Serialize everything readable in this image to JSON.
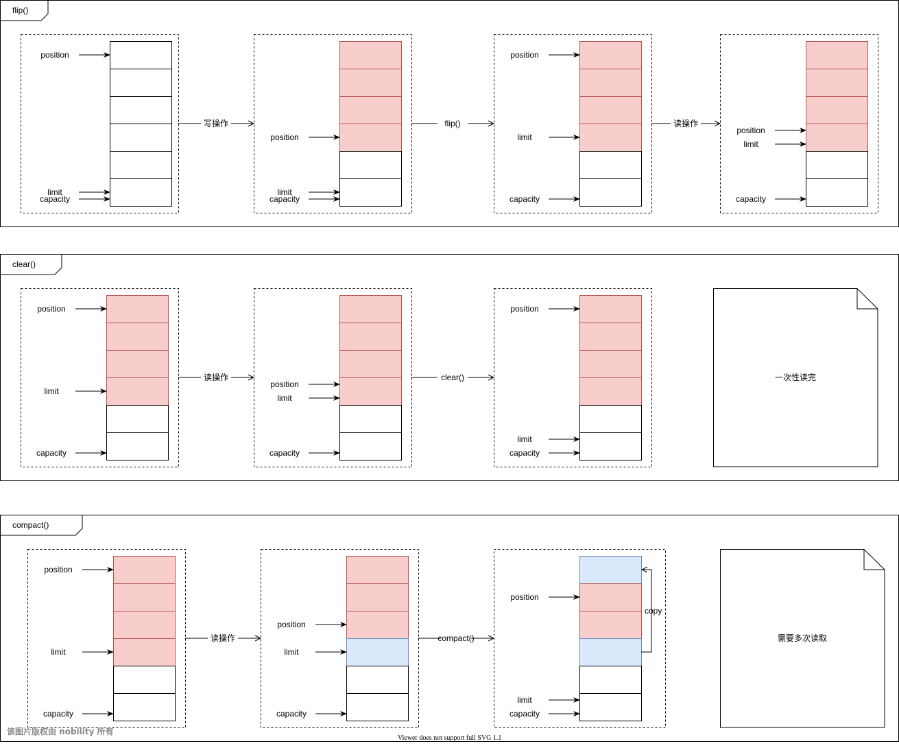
{
  "colors": {
    "filled": "#f8cecc",
    "filled_stroke": "#b85450",
    "copied": "#dae8fc",
    "copied_stroke": "#6c8ebf",
    "empty": "#ffffff"
  },
  "panels": [
    {
      "title": "flip()",
      "frames": [
        {
          "cells": [
            "empty",
            "empty",
            "empty",
            "empty",
            "empty",
            "empty"
          ],
          "pointers": [
            {
              "label": "position",
              "at": 0.5
            },
            {
              "label": "limit",
              "at": 5.5
            },
            {
              "label": "capacity",
              "at": 6
            }
          ]
        },
        {
          "cells": [
            "filled",
            "filled",
            "filled",
            "filled",
            "empty",
            "empty"
          ],
          "pointers": [
            {
              "label": "position",
              "at": 3.5
            },
            {
              "label": "limit",
              "at": 5.5
            },
            {
              "label": "capacity",
              "at": 6
            }
          ]
        },
        {
          "cells": [
            "filled",
            "filled",
            "filled",
            "filled",
            "empty",
            "empty"
          ],
          "pointers": [
            {
              "label": "position",
              "at": 0.5
            },
            {
              "label": "limit",
              "at": 3.5
            },
            {
              "label": "capacity",
              "at": 6
            }
          ]
        },
        {
          "cells": [
            "filled",
            "filled",
            "filled",
            "filled",
            "empty",
            "empty"
          ],
          "pointers": [
            {
              "label": "position",
              "at": 3.25
            },
            {
              "label": "limit",
              "at": 3.75
            },
            {
              "label": "capacity",
              "at": 6
            }
          ]
        }
      ],
      "transitions": [
        "写操作",
        "flip()",
        "读操作"
      ],
      "note": null
    },
    {
      "title": "clear()",
      "frames": [
        {
          "cells": [
            "filled",
            "filled",
            "filled",
            "filled",
            "empty",
            "empty"
          ],
          "pointers": [
            {
              "label": "position",
              "at": 0.5
            },
            {
              "label": "limit",
              "at": 3.5
            },
            {
              "label": "capacity",
              "at": 6
            }
          ]
        },
        {
          "cells": [
            "filled",
            "filled",
            "filled",
            "filled",
            "empty",
            "empty"
          ],
          "pointers": [
            {
              "label": "position",
              "at": 3.25
            },
            {
              "label": "limit",
              "at": 3.75
            },
            {
              "label": "capacity",
              "at": 6
            }
          ]
        },
        {
          "cells": [
            "filled",
            "filled",
            "filled",
            "filled",
            "empty",
            "empty"
          ],
          "pointers": [
            {
              "label": "position",
              "at": 0.5
            },
            {
              "label": "limit",
              "at": 5.25
            },
            {
              "label": "capacity",
              "at": 6
            }
          ]
        }
      ],
      "transitions": [
        "读操作",
        "clear()"
      ],
      "note": "一次性读完"
    },
    {
      "title": "compact()",
      "frames": [
        {
          "cells": [
            "filled",
            "filled",
            "filled",
            "filled",
            "empty",
            "empty"
          ],
          "pointers": [
            {
              "label": "position",
              "at": 0.5
            },
            {
              "label": "limit",
              "at": 3.5
            },
            {
              "label": "capacity",
              "at": 6
            }
          ]
        },
        {
          "cells": [
            "filled",
            "filled",
            "filled",
            "copied",
            "empty",
            "empty"
          ],
          "pointers": [
            {
              "label": "position",
              "at": 2.5
            },
            {
              "label": "limit",
              "at": 3.5
            },
            {
              "label": "capacity",
              "at": 6
            }
          ]
        },
        {
          "cells": [
            "copied",
            "filled",
            "filled",
            "copied",
            "empty",
            "empty"
          ],
          "pointers": [
            {
              "label": "position",
              "at": 1.5
            },
            {
              "label": "limit",
              "at": 5.25
            },
            {
              "label": "capacity",
              "at": 6
            }
          ],
          "copy_label": "copy"
        }
      ],
      "transitions": [
        "读操作",
        "compact()"
      ],
      "note": "需要多次读取"
    }
  ],
  "watermark": "该图片版权由 nobility 所有",
  "footer": "Viewer does not support full SVG 1.1"
}
